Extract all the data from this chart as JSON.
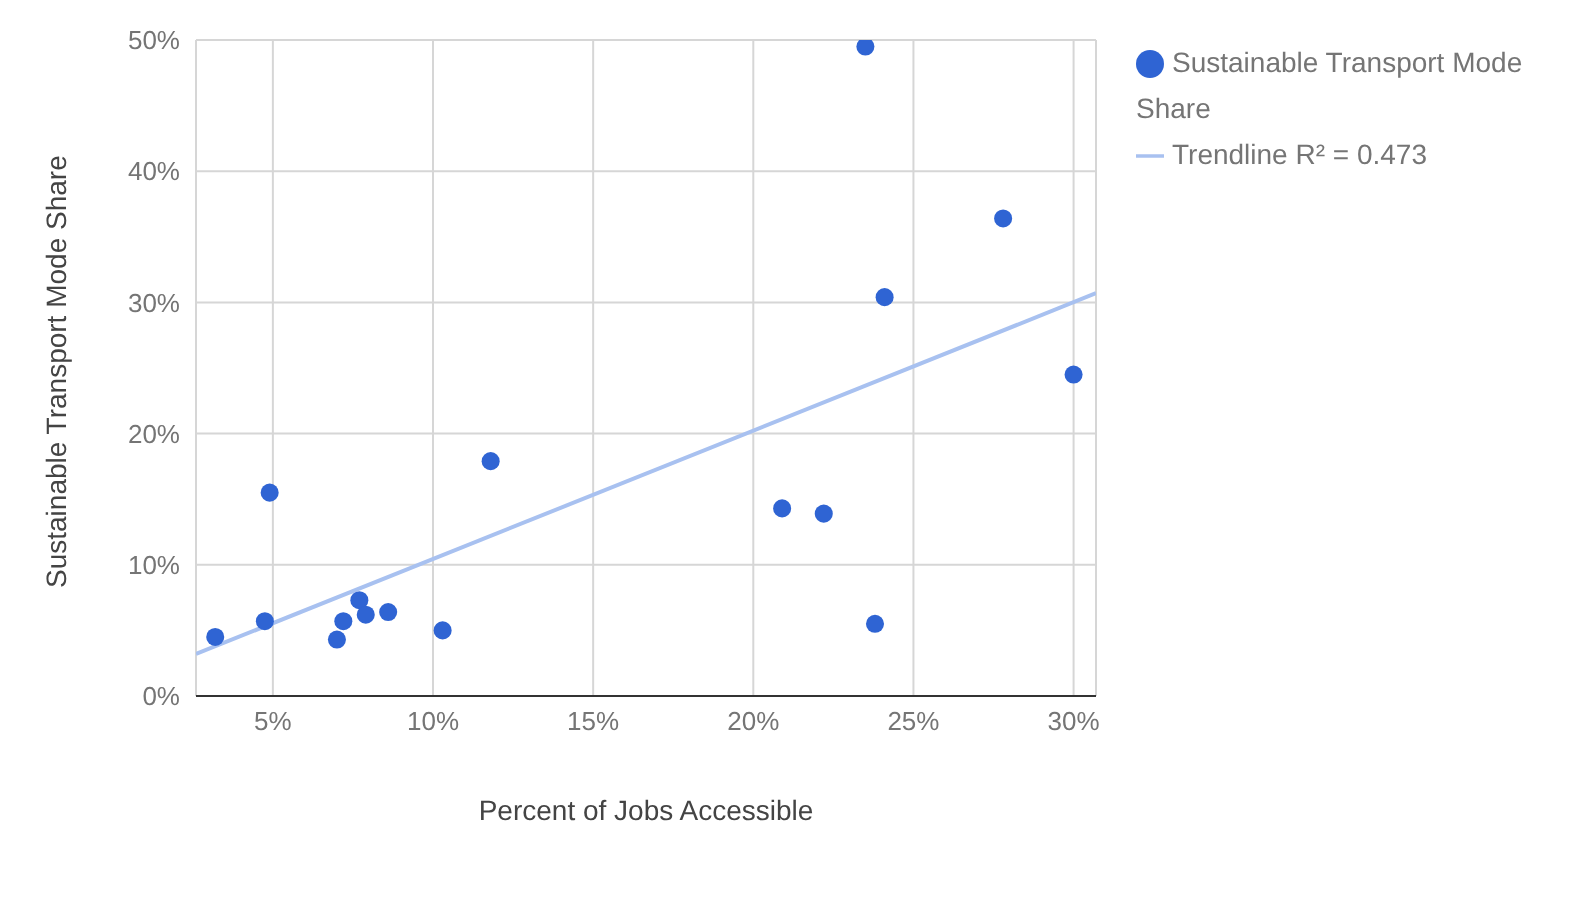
{
  "chart_data": {
    "type": "scatter",
    "xlabel": "Percent of Jobs Accessible",
    "ylabel": "Sustainable Transport Mode Share",
    "xlim": [
      2.6,
      30.7
    ],
    "ylim": [
      0,
      50
    ],
    "xticks": [
      {
        "value": 5,
        "label": "5%"
      },
      {
        "value": 10,
        "label": "10%"
      },
      {
        "value": 15,
        "label": "15%"
      },
      {
        "value": 20,
        "label": "20%"
      },
      {
        "value": 25,
        "label": "25%"
      },
      {
        "value": 30,
        "label": "30%"
      }
    ],
    "yticks": [
      {
        "value": 0,
        "label": "0%"
      },
      {
        "value": 10,
        "label": "10%"
      },
      {
        "value": 20,
        "label": "20%"
      },
      {
        "value": 30,
        "label": "30%"
      },
      {
        "value": 40,
        "label": "40%"
      },
      {
        "value": 50,
        "label": "50%"
      }
    ],
    "grid": true,
    "legend": "top right",
    "series": [
      {
        "name": "Sustainable Transport Mode Share",
        "marker": "circle",
        "color": "#2f64d3",
        "x": [
          3.2,
          4.75,
          4.9,
          7.0,
          7.2,
          7.7,
          7.9,
          8.6,
          10.3,
          11.8,
          20.9,
          22.2,
          23.5,
          23.8,
          24.1,
          27.8,
          30.0
        ],
        "values": [
          4.5,
          5.7,
          15.5,
          4.3,
          5.7,
          7.3,
          6.2,
          6.4,
          5.0,
          17.9,
          14.3,
          13.9,
          49.5,
          5.5,
          30.4,
          36.4,
          24.5
        ]
      },
      {
        "name": "Trendline R² = 0.473",
        "type": "line",
        "marker": "none",
        "color": "#a8c1f0",
        "x": [
          2.6,
          30.7
        ],
        "values": [
          3.2,
          30.7
        ]
      }
    ]
  }
}
